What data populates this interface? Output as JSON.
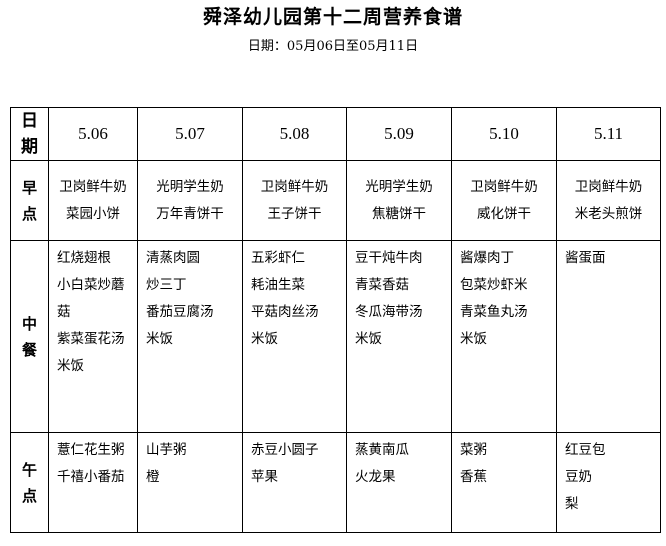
{
  "title": "舜泽幼儿园第十二周营养食谱",
  "subtitle": "日期：05月06日至05月11日",
  "row_labels": {
    "date": [
      "日",
      "期"
    ],
    "breakfast": [
      "早",
      "点"
    ],
    "lunch": [
      "中",
      "餐"
    ],
    "snack": [
      "午",
      "点"
    ]
  },
  "dates": [
    "5.06",
    "5.07",
    "5.08",
    "5.09",
    "5.10",
    "5.11"
  ],
  "breakfast": [
    [
      "卫岗鲜牛奶",
      "菜园小饼"
    ],
    [
      "光明学生奶",
      "万年青饼干"
    ],
    [
      "卫岗鲜牛奶",
      "王子饼干"
    ],
    [
      "光明学生奶",
      "焦糖饼干"
    ],
    [
      "卫岗鲜牛奶",
      "威化饼干"
    ],
    [
      "卫岗鲜牛奶",
      "米老头煎饼"
    ]
  ],
  "lunch": [
    [
      "红烧翅根",
      "小白菜炒蘑",
      "菇",
      "紫菜蛋花汤",
      "米饭"
    ],
    [
      "清蒸肉圆",
      "炒三丁",
      "番茄豆腐汤",
      "米饭"
    ],
    [
      "五彩虾仁",
      "耗油生菜",
      "平菇肉丝汤",
      "米饭"
    ],
    [
      "豆干炖牛肉",
      "青菜香菇",
      "冬瓜海带汤",
      "米饭"
    ],
    [
      "酱爆肉丁",
      "包菜炒虾米",
      "青菜鱼丸汤",
      "米饭"
    ],
    [
      "酱蛋面"
    ]
  ],
  "snack": [
    [
      "薏仁花生粥",
      "千禧小番茄"
    ],
    [
      "山芋粥",
      "橙"
    ],
    [
      "赤豆小圆子",
      "苹果"
    ],
    [
      "蒸黄南瓜",
      "火龙果"
    ],
    [
      "菜粥",
      "香蕉"
    ],
    [
      "红豆包",
      "豆奶",
      "梨"
    ]
  ]
}
